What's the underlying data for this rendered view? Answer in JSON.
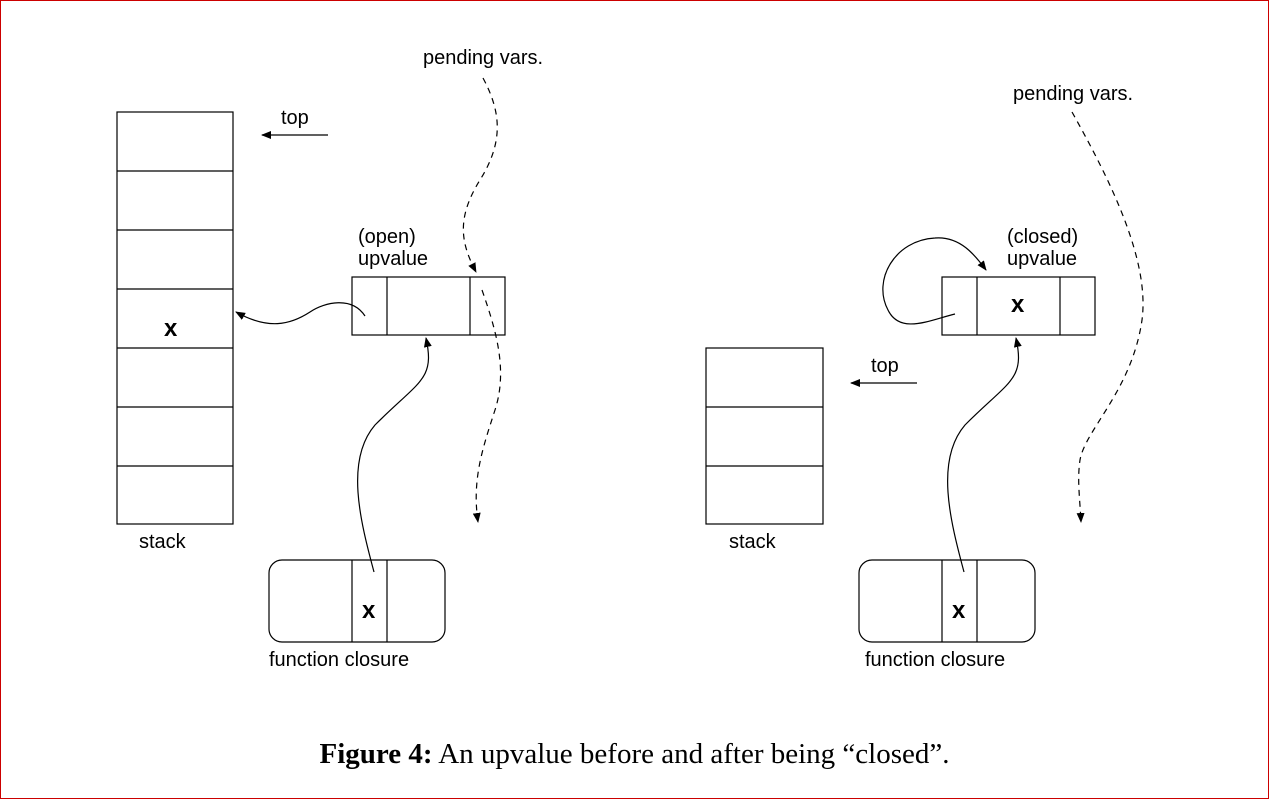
{
  "before": {
    "pending_label": "pending vars.",
    "top_label": "top",
    "upvalue_state": "(open)",
    "upvalue_word": "upvalue",
    "stack_label": "stack",
    "stack_value": "x",
    "closure_value": "x",
    "closure_label": "function closure"
  },
  "after": {
    "pending_label": "pending vars.",
    "top_label": "top",
    "upvalue_state": "(closed)",
    "upvalue_word": "upvalue",
    "upvalue_value": "x",
    "stack_label": "stack",
    "closure_value": "x",
    "closure_label": "function closure"
  },
  "caption": {
    "number": "Figure 4:",
    "text": "An upvalue before and after being “closed”."
  }
}
